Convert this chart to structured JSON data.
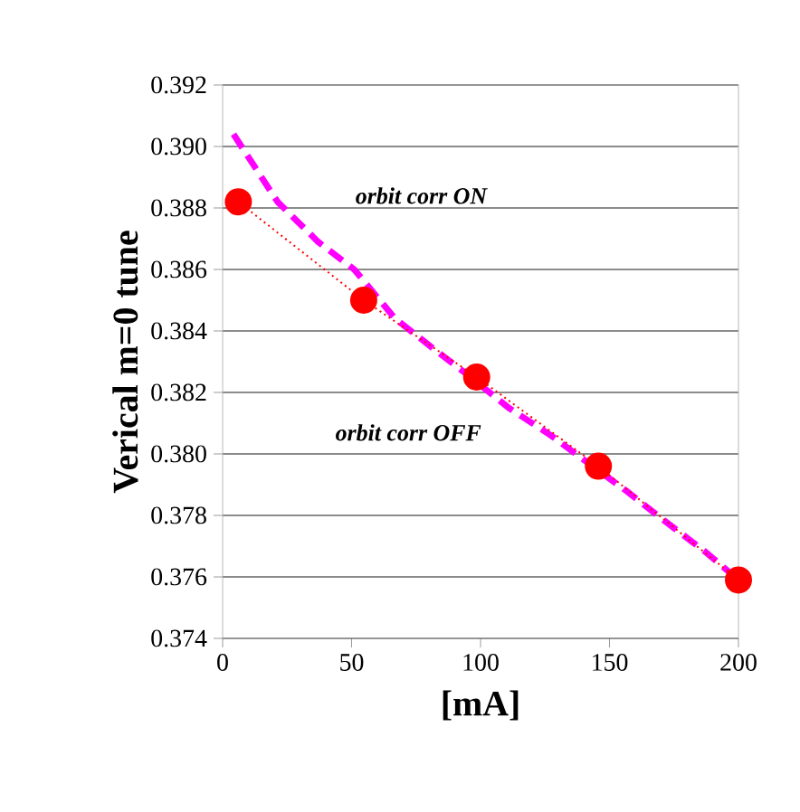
{
  "chart_data": {
    "type": "line",
    "xlabel": "[mA]",
    "ylabel": "Verical m=0 tune",
    "xlim": [
      0,
      200
    ],
    "xticks": [
      0,
      50,
      100,
      150,
      200
    ],
    "ylim": [
      0.374,
      0.392
    ],
    "yticks": [
      0.374,
      0.376,
      0.378,
      {
        "value": 0.38,
        "label": "0.380"
      },
      0.382,
      0.384,
      0.386,
      0.388,
      {
        "value": 0.39,
        "label": "0.390"
      },
      0.392
    ],
    "grid": "y",
    "series": [
      {
        "color": "#ff00ff",
        "line_style": "dashed",
        "marker": "none",
        "x": [
          4.2,
          21.3,
          37.0,
          51.0,
          66.9,
          82.1,
          96.1,
          110.9,
          127.3,
          141.8,
          156.5,
          171.7,
          187.4,
          200
        ],
        "values": [
          0.3904,
          0.3882,
          0.3869,
          0.386,
          0.3844,
          0.3834,
          0.3825,
          0.3815,
          0.3806,
          0.3797,
          0.3788,
          0.3778,
          0.3768,
          0.3759
        ]
      },
      {
        "color": "#ff0000",
        "line_style": "dotted",
        "marker": "circle",
        "x": [
          6.1,
          54.7,
          98.5,
          145.7,
          200
        ],
        "values": [
          0.3882,
          0.385,
          0.3825,
          0.3796,
          0.3759
        ]
      }
    ],
    "annotations": [
      "orbit corr ON",
      "orbit corr OFF"
    ]
  }
}
